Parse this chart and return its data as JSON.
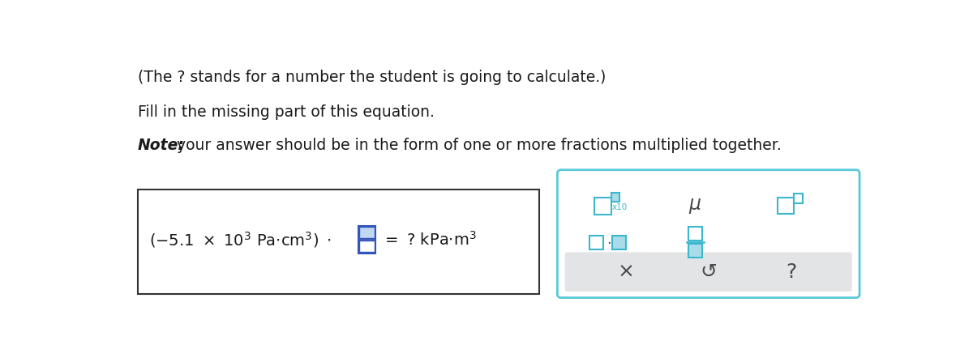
{
  "bg_color": "#ffffff",
  "line1": "(The ? stands for a number the student is going to calculate.)",
  "line2": "Fill in the missing part of this equation.",
  "line3_italic": "Note:",
  "line3_rest": " your answer should be in the form of one or more fractions multiplied together.",
  "teal": "#3cb8cc",
  "teal_fill": "#a8dce8",
  "dark_gray": "#4a4a4a",
  "text_color": "#1a1a1a",
  "note_color": "#1a1a1a",
  "eq_box_edge": "#333333",
  "panel_edge": "#5bc8d8",
  "panel_gray": "#e2e4e6"
}
